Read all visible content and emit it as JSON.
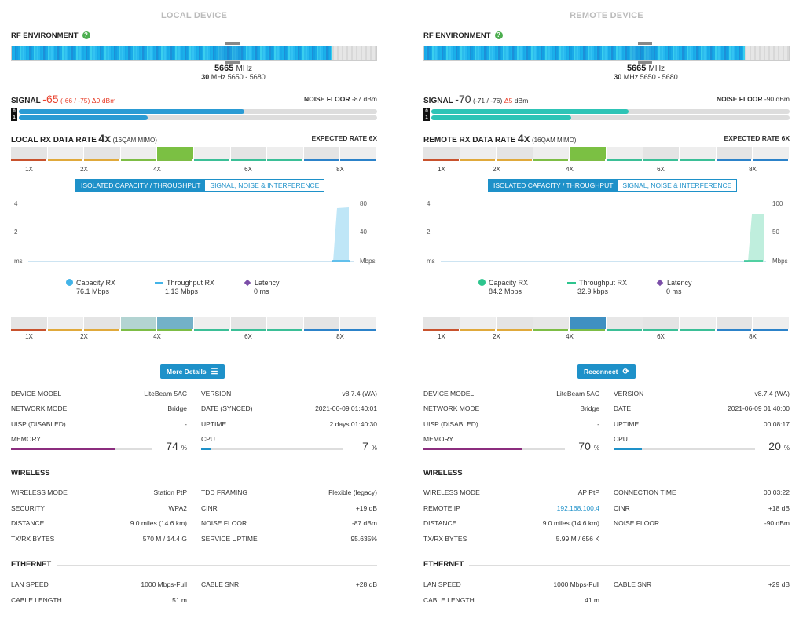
{
  "local": {
    "title": "LOCAL DEVICE",
    "rf_label": "RF ENVIRONMENT",
    "freq_main": "5665",
    "freq_unit": "MHz",
    "freq_width": "30",
    "freq_width_unit": "MHz",
    "freq_range": "5650 - 5680",
    "signal_label": "SIGNAL",
    "signal_value": "-65",
    "signal_chains": "(-66 / -75)",
    "signal_delta": "Δ9",
    "signal_unit": "dBm",
    "signal_color": "#e8412c",
    "noise_label": "NOISE FLOOR",
    "noise_value": "-87 dBm",
    "chain0": 0.63,
    "chain1": 0.36,
    "chain_color": "#2a9bd4",
    "chain_tags": [
      "0",
      "1"
    ],
    "rate_label": "LOCAL RX DATA RATE",
    "rate_value": "4x",
    "rate_mod": "(16QAM MIMO)",
    "expected_label": "EXPECTED RATE",
    "expected_value": "6X",
    "mcs_labels": [
      "1X",
      "2X",
      "4X",
      "6X",
      "8X"
    ],
    "tab_active": "ISOLATED CAPACITY / THROUGHPUT",
    "tab_inactive": "SIGNAL, NOISE & INTERFERENCE",
    "axis_left": [
      "4",
      "2",
      "ms"
    ],
    "axis_right": [
      "80",
      "40",
      "Mbps"
    ],
    "legend": [
      {
        "name": "Capacity RX",
        "value": "76.1 Mbps",
        "color": "#43b4e8"
      },
      {
        "name": "Throughput RX",
        "value": "1.13 Mbps",
        "color": "#43b4e8"
      },
      {
        "name": "Latency",
        "value": "0 ms",
        "color": "#7b4ea8"
      }
    ],
    "action_label": "More Details",
    "device_rows_left": [
      {
        "k": "DEVICE MODEL",
        "v": "LiteBeam 5AC"
      },
      {
        "k": "NETWORK MODE",
        "v": "Bridge"
      },
      {
        "k": "UISP (DISABLED)",
        "v": "-"
      }
    ],
    "device_rows_right": [
      {
        "k": "VERSION",
        "v": "v8.7.4 (WA)"
      },
      {
        "k": "DATE (SYNCED)",
        "v": "2021-06-09 01:40:01"
      },
      {
        "k": "UPTIME",
        "v": "2 days 01:40:30"
      }
    ],
    "memory_label": "MEMORY",
    "memory_value": "74",
    "memory_frac": 0.74,
    "cpu_label": "CPU",
    "cpu_value": "7",
    "cpu_frac": 0.07,
    "pct": "%",
    "wireless_title": "WIRELESS",
    "wireless_left": [
      {
        "k": "WIRELESS MODE",
        "v": "Station PtP"
      },
      {
        "k": "SECURITY",
        "v": "WPA2"
      },
      {
        "k": "DISTANCE",
        "v": "9.0 miles (14.6 km)"
      },
      {
        "k": "TX/RX BYTES",
        "v": "570 M / 14.4 G"
      }
    ],
    "wireless_right": [
      {
        "k": "TDD FRAMING",
        "v": "Flexible (legacy)"
      },
      {
        "k": "CINR",
        "v": "+19 dB"
      },
      {
        "k": "NOISE FLOOR",
        "v": "-87 dBm"
      },
      {
        "k": "SERVICE UPTIME",
        "v": "95.635%"
      }
    ],
    "ethernet_title": "ETHERNET",
    "ethernet_left": [
      {
        "k": "LAN SPEED",
        "v": "1000 Mbps-Full"
      },
      {
        "k": "CABLE LENGTH",
        "v": "51 m"
      }
    ],
    "ethernet_right": [
      {
        "k": "CABLE SNR",
        "v": "+28 dB"
      }
    ],
    "series_color": "#bfe6f7"
  },
  "remote": {
    "title": "REMOTE DEVICE",
    "rf_label": "RF ENVIRONMENT",
    "freq_main": "5665",
    "freq_unit": "MHz",
    "freq_width": "30",
    "freq_width_unit": "MHz",
    "freq_range": "5650 - 5680",
    "signal_label": "SIGNAL",
    "signal_value": "-70",
    "signal_chains": "(-71 / -76)",
    "signal_delta": "Δ5",
    "signal_unit": "dBm",
    "signal_color": "#333333",
    "noise_label": "NOISE FLOOR",
    "noise_value": "-90 dBm",
    "chain0": 0.55,
    "chain1": 0.39,
    "chain_color": "#2ec4b6",
    "chain_tags": [
      "0",
      "1"
    ],
    "rate_label": "REMOTE RX DATA RATE",
    "rate_value": "4x",
    "rate_mod": "(16QAM MIMO)",
    "expected_label": "EXPECTED RATE",
    "expected_value": "6X",
    "mcs_labels": [
      "1X",
      "2X",
      "4X",
      "6X",
      "8X"
    ],
    "tab_active": "ISOLATED CAPACITY / THROUGHPUT",
    "tab_inactive": "SIGNAL, NOISE & INTERFERENCE",
    "axis_left": [
      "4",
      "2",
      "ms"
    ],
    "axis_right": [
      "100",
      "50",
      "Mbps"
    ],
    "legend": [
      {
        "name": "Capacity RX",
        "value": "84.2 Mbps",
        "color": "#2dc58e"
      },
      {
        "name": "Throughput RX",
        "value": "32.9 kbps",
        "color": "#2dc58e"
      },
      {
        "name": "Latency",
        "value": "0 ms",
        "color": "#7b4ea8"
      }
    ],
    "action_label": "Reconnect",
    "device_rows_left": [
      {
        "k": "DEVICE MODEL",
        "v": "LiteBeam 5AC"
      },
      {
        "k": "NETWORK MODE",
        "v": "Bridge"
      },
      {
        "k": "UISP (DISABLED)",
        "v": "-"
      }
    ],
    "device_rows_right": [
      {
        "k": "VERSION",
        "v": "v8.7.4 (WA)"
      },
      {
        "k": "DATE",
        "v": "2021-06-09 01:40:00"
      },
      {
        "k": "UPTIME",
        "v": "00:08:17"
      }
    ],
    "memory_label": "MEMORY",
    "memory_value": "70",
    "memory_frac": 0.7,
    "cpu_label": "CPU",
    "cpu_value": "20",
    "cpu_frac": 0.2,
    "pct": "%",
    "wireless_title": "WIRELESS",
    "wireless_left": [
      {
        "k": "WIRELESS MODE",
        "v": "AP PtP"
      },
      {
        "k": "REMOTE IP",
        "v": "192.168.100.4",
        "link": true
      },
      {
        "k": "DISTANCE",
        "v": "9.0 miles (14.6 km)"
      },
      {
        "k": "TX/RX BYTES",
        "v": "5.99 M / 656 K"
      }
    ],
    "wireless_right": [
      {
        "k": "CONNECTION TIME",
        "v": "00:03:22"
      },
      {
        "k": "CINR",
        "v": "+18 dB"
      },
      {
        "k": "NOISE FLOOR",
        "v": "-90 dBm"
      }
    ],
    "ethernet_title": "ETHERNET",
    "ethernet_left": [
      {
        "k": "LAN SPEED",
        "v": "1000 Mbps-Full"
      },
      {
        "k": "CABLE LENGTH",
        "v": "41 m"
      }
    ],
    "ethernet_right": [
      {
        "k": "CABLE SNR",
        "v": "+29 dB"
      }
    ],
    "series_color": "#bfeedd"
  },
  "mcs_colors": [
    "#c8522d",
    "#e0a93b",
    "#7dbd45",
    "#3bbf97",
    "#2c82c9"
  ],
  "accent": "#1e91c9",
  "memory_color": "#8b2d7e",
  "cpu_color": "#1e91c9"
}
